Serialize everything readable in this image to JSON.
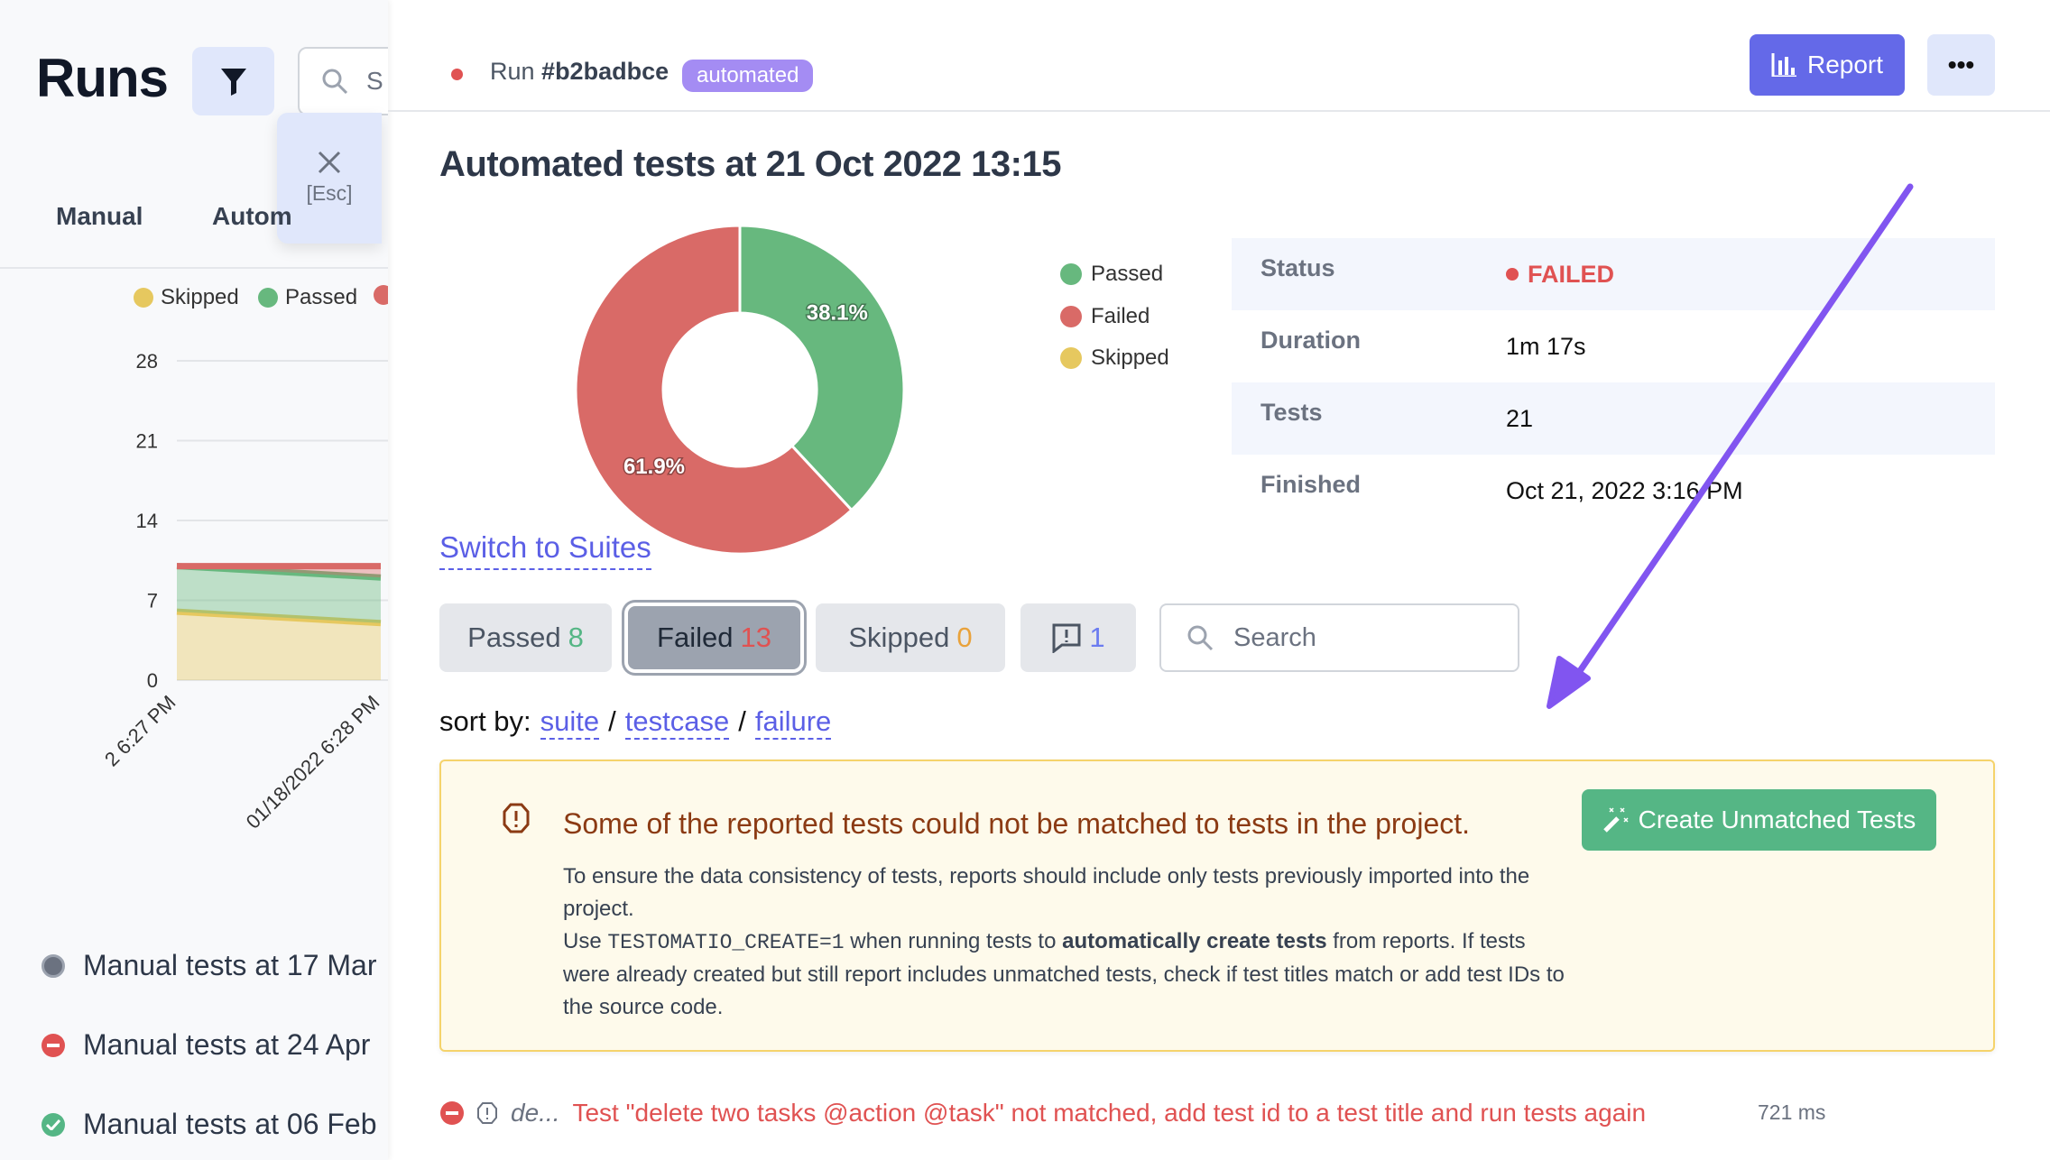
{
  "sidebar": {
    "title": "Runs",
    "search_placeholder": "S",
    "close_hint": "[Esc]",
    "tabs": [
      {
        "label": "Manual"
      },
      {
        "label": "Autom"
      }
    ],
    "chart_data": {
      "type": "area",
      "stacked": true,
      "legend": [
        "Skipped",
        "Passed"
      ],
      "legend_position": "top",
      "x": [
        "2 6:27 PM",
        "01/18/2022 6:28 PM"
      ],
      "series": [
        {
          "name": "Skipped",
          "values": [
            6,
            5
          ],
          "color": "#e6c85f"
        },
        {
          "name": "Passed",
          "values": [
            4,
            4
          ],
          "color": "#67b87e"
        },
        {
          "values": [
            0,
            1
          ],
          "color": "#d96a67"
        }
      ],
      "yticks": [
        "28",
        "21",
        "14",
        "7",
        "0"
      ],
      "ylim": [
        0,
        28
      ],
      "grid": true
    },
    "runs": [
      {
        "label": "Manual tests at 17 Mar",
        "status": "in-progress"
      },
      {
        "label": "Manual tests at 24 Apr",
        "status": "failed"
      },
      {
        "label": "Manual tests at 06 Feb",
        "status": "passed"
      }
    ]
  },
  "header": {
    "run_prefix": "Run",
    "run_id": "#b2badbce",
    "badge": "automated",
    "report_label": "Report",
    "more_label": "•••"
  },
  "main": {
    "title": "Automated tests at 21 Oct 2022 13:15",
    "pie": {
      "slices": [
        {
          "name": "Passed",
          "value": 8,
          "pct_label": "38.1%",
          "color": "#67b87e"
        },
        {
          "name": "Failed",
          "value": 13,
          "pct_label": "61.9%",
          "color": "#d96a67"
        },
        {
          "name": "Skipped",
          "value": 0,
          "pct_label": "",
          "color": "#e6c85f"
        }
      ]
    },
    "switch_link": "Switch to Suites",
    "info": {
      "status_label": "Status",
      "status_value": "FAILED",
      "duration_label": "Duration",
      "duration_value": "1m 17s",
      "tests_label": "Tests",
      "tests_value": "21",
      "finished_label": "Finished",
      "finished_value": "Oct 21, 2022 3:16 PM"
    },
    "filters": {
      "passed_label": "Passed",
      "passed_count": "8",
      "failed_label": "Failed",
      "failed_count": "13",
      "skipped_label": "Skipped",
      "skipped_count": "0",
      "comments_count": "1",
      "search_placeholder": "Search"
    },
    "sort": {
      "label": "sort by:",
      "options": [
        "suite",
        "testcase",
        "failure"
      ],
      "sep": "/"
    },
    "alert": {
      "title": "Some of the reported tests could not be matched to tests in the project.",
      "line1": "To ensure the data consistency of tests, reports should include only tests previously imported into the project.",
      "use": "Use",
      "env": "TESTOMATIO_CREATE=1",
      "mid": " when running tests to",
      "bold": "automatically create tests",
      "rest": "from reports. If tests were already created but still report includes unmatched tests, check if test titles match or add test IDs to the source code.",
      "button": "Create Unmatched Tests"
    },
    "test_row": {
      "short_title": "de...",
      "message": "Test \"delete two tasks @action @task\" not matched, add test id to a test title and run tests again",
      "duration": "721 ms"
    }
  },
  "colors": {
    "accent": "#6469e8",
    "failed": "#e05252",
    "passed": "#55b685",
    "badge": "#a48cf3",
    "annotation_arrow": "#8155f0"
  }
}
